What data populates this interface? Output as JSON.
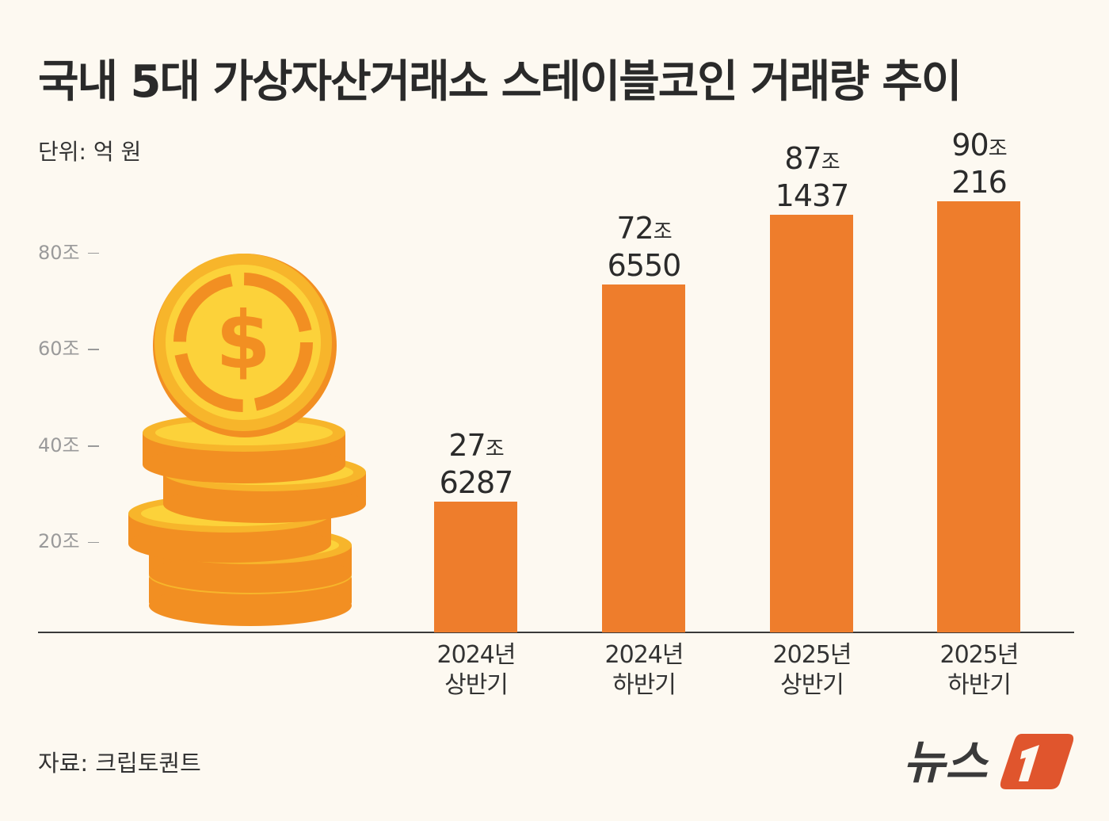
{
  "title": "국내 5대 가상자산거래소 스테이블코인 거래량 추이",
  "unit_label": "단위: 억 원",
  "source": "자료: 크립토퀀트",
  "logo_text": "뉴스1",
  "chart_data": {
    "type": "bar",
    "title": "국내 5대 가상자산거래소 스테이블코인 거래량 추이",
    "unit": "조",
    "categories": [
      {
        "year": "2024년",
        "half": "상반기"
      },
      {
        "year": "2024년",
        "half": "하반기"
      },
      {
        "year": "2025년",
        "half": "상반기"
      },
      {
        "year": "2025년",
        "half": "하반기"
      }
    ],
    "values": [
      27.6287,
      72.655,
      87.1437,
      90.0216
    ],
    "data_labels": [
      {
        "jo": "27",
        "eok": "6287"
      },
      {
        "jo": "72",
        "eok": "6550"
      },
      {
        "jo": "87",
        "eok": "1437"
      },
      {
        "jo": "90",
        "eok": "216"
      }
    ],
    "yticks": [
      "20조",
      "40조",
      "60조",
      "80조"
    ],
    "ytick_values": [
      20,
      40,
      60,
      80
    ],
    "ylim": [
      0,
      90
    ],
    "grid": false,
    "colors": {
      "bar": "#ee7d2c",
      "background": "#fdf9f1"
    }
  }
}
